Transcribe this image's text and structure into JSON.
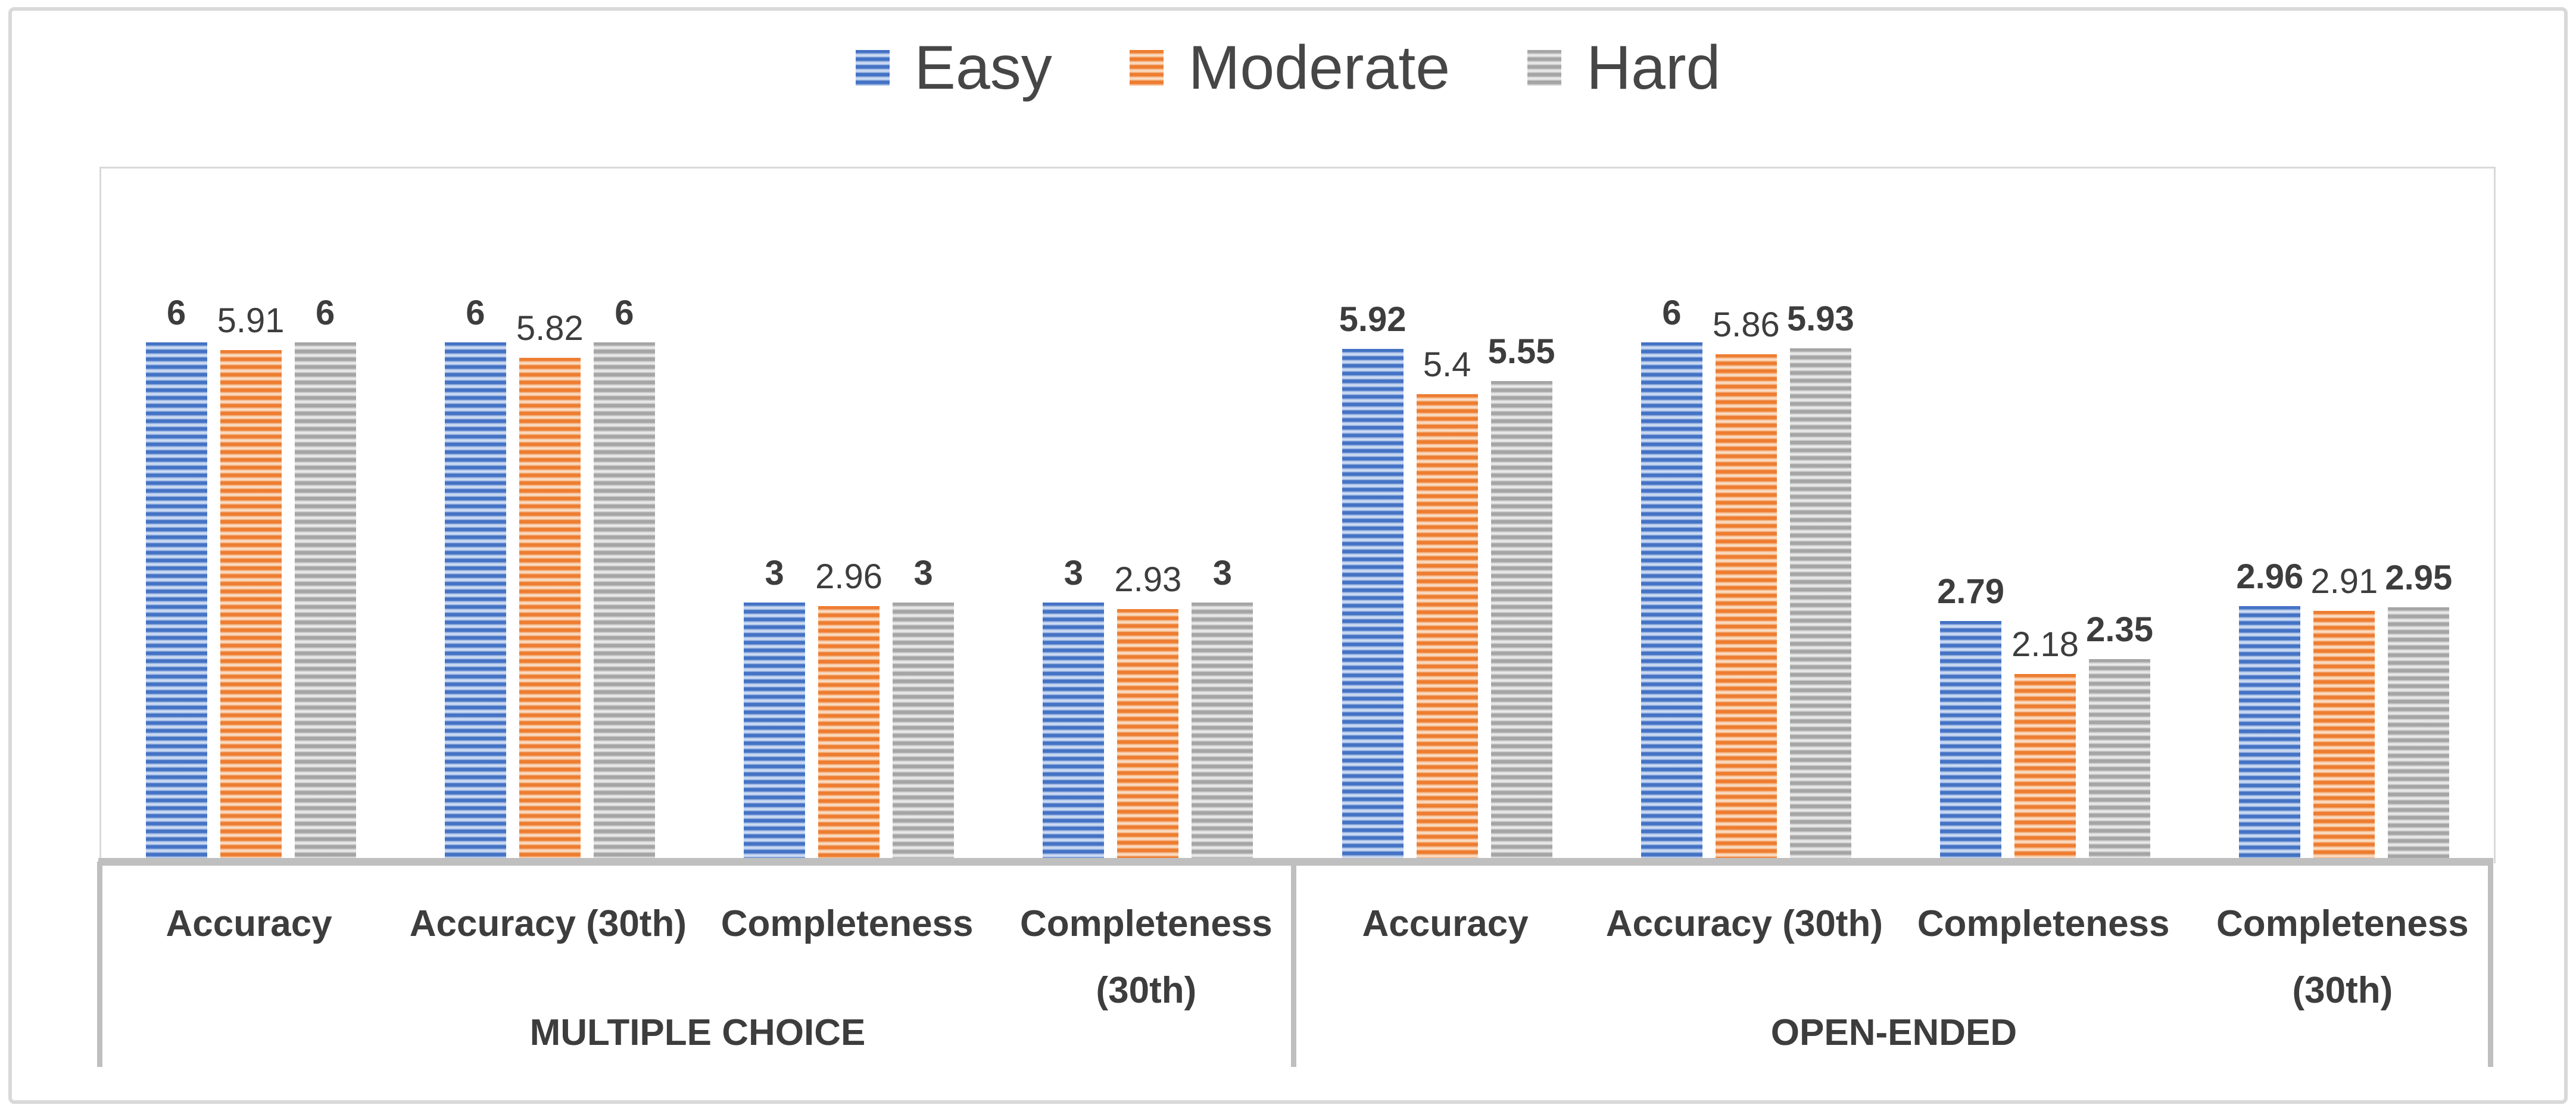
{
  "chart_data": {
    "type": "bar",
    "title": "",
    "pattern": "horizontal-stripes",
    "legend_position": "top",
    "grid": false,
    "data_labels": "outside-end",
    "ylim": [
      0,
      8
    ],
    "series": [
      {
        "name": "Easy",
        "color": "#4472C4",
        "stripe_light": "#D8E3F5",
        "label_bold": true,
        "css": "fill-easy"
      },
      {
        "name": "Moderate",
        "color": "#ED7D31",
        "stripe_light": "#FCE5D2",
        "label_bold": false,
        "css": "fill-moderate"
      },
      {
        "name": "Hard",
        "color": "#A5A5A5",
        "stripe_light": "#F0F0F0",
        "label_bold": true,
        "css": "fill-hard"
      }
    ],
    "groups": [
      {
        "label": "MULTIPLE CHOICE",
        "categories": [
          "Accuracy",
          "Accuracy (30th)",
          "Completeness",
          "Completeness (30th)"
        ],
        "values": [
          [
            6,
            5.91,
            6
          ],
          [
            6,
            5.82,
            6
          ],
          [
            3,
            2.96,
            3
          ],
          [
            3,
            2.93,
            3
          ]
        ]
      },
      {
        "label": "OPEN-ENDED",
        "categories": [
          "Accuracy",
          "Accuracy (30th)",
          "Completeness",
          "Completeness (30th)"
        ],
        "values": [
          [
            5.92,
            5.4,
            5.55
          ],
          [
            6,
            5.86,
            5.93
          ],
          [
            2.79,
            2.18,
            2.35
          ],
          [
            2.96,
            2.91,
            2.95
          ]
        ]
      }
    ]
  },
  "colors": {
    "axis_line": "#BFBFBF",
    "plot_border": "#D9D9D9",
    "outer_border": "#D9D9D9",
    "label_text": "#3D3D3D",
    "legend_text": "#464646",
    "background": "#FFFFFF"
  }
}
